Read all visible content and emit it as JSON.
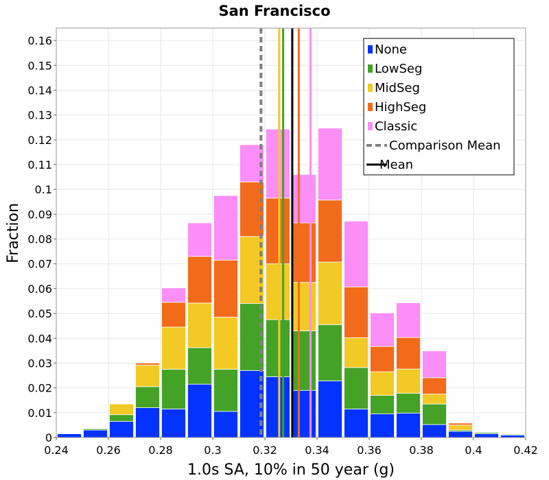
{
  "chart_data": {
    "type": "bar",
    "stacked": true,
    "title": "San Francisco",
    "xlabel": "1.0s SA, 10% in 50 year (g)",
    "ylabel": "Fraction",
    "xlim": [
      0.24,
      0.42
    ],
    "ylim": [
      0,
      0.165
    ],
    "bin_width": 0.01,
    "grid": true,
    "x_ticks": [
      "0.24",
      "0.26",
      "0.28",
      "0.3",
      "0.32",
      "0.34",
      "0.36",
      "0.38",
      "0.4",
      "0.42"
    ],
    "x_tick_values": [
      0.24,
      0.26,
      0.28,
      0.3,
      0.32,
      0.34,
      0.36,
      0.38,
      0.4,
      0.42
    ],
    "y_ticks": [
      "0",
      "0.01",
      "0.02",
      "0.03",
      "0.04",
      "0.05",
      "0.06",
      "0.07",
      "0.08",
      "0.09",
      "0.1",
      "0.11",
      "0.12",
      "0.13",
      "0.14",
      "0.15",
      "0.16"
    ],
    "y_tick_values": [
      0,
      0.01,
      0.02,
      0.03,
      0.04,
      0.05,
      0.06,
      0.07,
      0.08,
      0.09,
      0.1,
      0.11,
      0.12,
      0.13,
      0.14,
      0.15,
      0.16
    ],
    "bin_starts": [
      0.24,
      0.25,
      0.26,
      0.27,
      0.28,
      0.29,
      0.3,
      0.31,
      0.32,
      0.33,
      0.34,
      0.35,
      0.36,
      0.37,
      0.38,
      0.39,
      0.4,
      0.41
    ],
    "series": [
      {
        "name": "None",
        "color": "#0433ff",
        "values": [
          0.0015,
          0.003,
          0.0065,
          0.012,
          0.0115,
          0.0215,
          0.0105,
          0.027,
          0.0245,
          0.019,
          0.0228,
          0.0115,
          0.0095,
          0.0098,
          0.0052,
          0.0025,
          0.0015,
          0.001
        ]
      },
      {
        "name": "LowSeg",
        "color": "#44a327",
        "values": [
          0,
          0.0005,
          0.0027,
          0.0085,
          0.016,
          0.0147,
          0.017,
          0.027,
          0.023,
          0.024,
          0.0227,
          0.0167,
          0.0075,
          0.008,
          0.0083,
          0.0005,
          0.0005,
          0.0003
        ]
      },
      {
        "name": "MidSeg",
        "color": "#f2c925",
        "values": [
          0,
          0,
          0.0043,
          0.0087,
          0.017,
          0.018,
          0.021,
          0.027,
          0.0225,
          0.0195,
          0.0252,
          0.012,
          0.0095,
          0.0098,
          0.004,
          0.002,
          0,
          0
        ]
      },
      {
        "name": "HighSeg",
        "color": "#f26b1a",
        "values": [
          0,
          0,
          0,
          0.0008,
          0.01,
          0.0188,
          0.023,
          0.022,
          0.0265,
          0.024,
          0.025,
          0.0205,
          0.0102,
          0.0127,
          0.0066,
          0.0008,
          0,
          0
        ]
      },
      {
        "name": "Classic",
        "color": "#fc8ef8",
        "values": [
          0,
          0,
          0,
          0,
          0.0058,
          0.0135,
          0.026,
          0.015,
          0.0278,
          0.0195,
          0.029,
          0.0265,
          0.0135,
          0.014,
          0.0108,
          0,
          0,
          0
        ]
      }
    ],
    "vertical_lines": [
      {
        "name": "Comparison Mean",
        "x": 0.3185,
        "color": "#808080",
        "dashed": true
      },
      {
        "name": "MidSeg mean",
        "x": 0.3255,
        "color": "#f2c925",
        "dashed": false
      },
      {
        "name": "LowSeg mean",
        "x": 0.327,
        "color": "#44a327",
        "dashed": false
      },
      {
        "name": "Mean",
        "x": 0.3305,
        "color": "#000000",
        "dashed": false
      },
      {
        "name": "HighSeg mean",
        "x": 0.333,
        "color": "#f26b1a",
        "dashed": false
      },
      {
        "name": "Classic mean",
        "x": 0.3375,
        "color": "#fc8ef8",
        "dashed": false
      }
    ],
    "legend": {
      "position": "top-right",
      "entries": [
        {
          "label": "None",
          "kind": "box",
          "color": "#0433ff"
        },
        {
          "label": "LowSeg",
          "kind": "box",
          "color": "#44a327"
        },
        {
          "label": "MidSeg",
          "kind": "box",
          "color": "#f2c925"
        },
        {
          "label": "HighSeg",
          "kind": "box",
          "color": "#f26b1a"
        },
        {
          "label": "Classic",
          "kind": "box",
          "color": "#fc8ef8"
        },
        {
          "label": "Comparison Mean",
          "kind": "dashed-line",
          "color": "#808080"
        },
        {
          "label": "Mean",
          "kind": "line",
          "color": "#000000"
        }
      ]
    }
  }
}
